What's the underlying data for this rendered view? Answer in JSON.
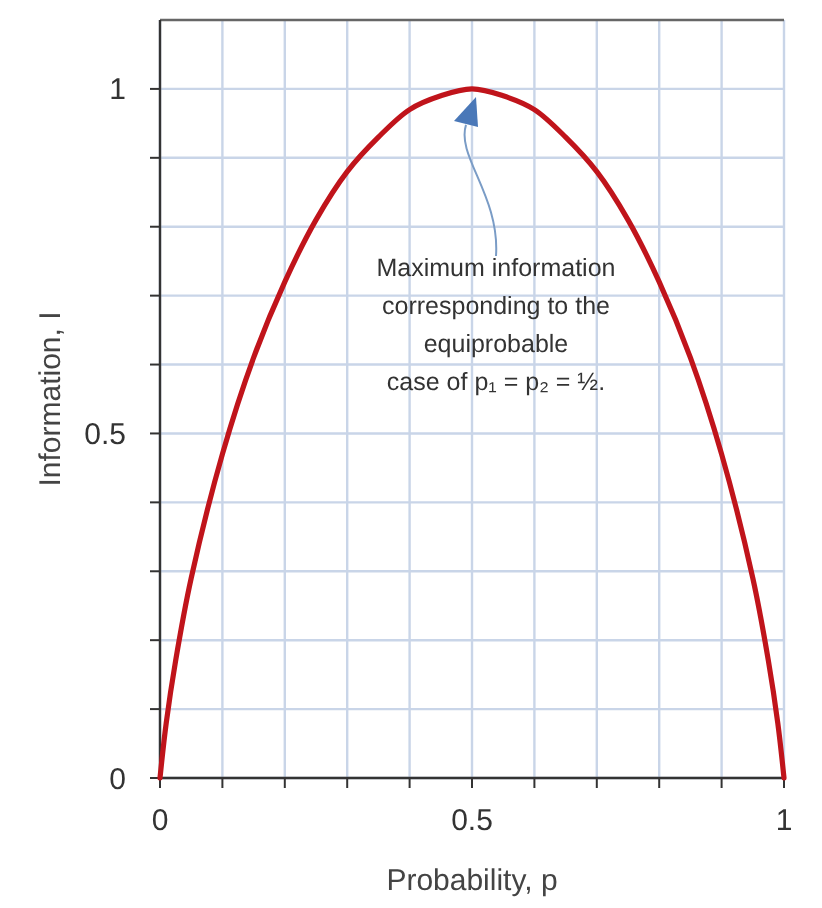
{
  "chart_data": {
    "type": "line",
    "xlabel": "Probability, p",
    "ylabel": "Information, I",
    "x": [
      0,
      0.01,
      0.025,
      0.05,
      0.1,
      0.15,
      0.2,
      0.25,
      0.3,
      0.35,
      0.4,
      0.45,
      0.5,
      0.55,
      0.6,
      0.65,
      0.7,
      0.75,
      0.8,
      0.85,
      0.9,
      0.95,
      0.975,
      0.99,
      1
    ],
    "series": [
      {
        "color": "#c0141b",
        "values": [
          0,
          0.08,
          0.17,
          0.29,
          0.47,
          0.61,
          0.72,
          0.81,
          0.88,
          0.93,
          0.97,
          0.99,
          1,
          0.99,
          0.97,
          0.93,
          0.88,
          0.81,
          0.72,
          0.61,
          0.47,
          0.29,
          0.17,
          0.08,
          0
        ]
      }
    ],
    "xlim": [
      0,
      1
    ],
    "ylim": [
      0,
      1.1
    ],
    "xticks": [
      0,
      {
        "value": 0.1,
        "label": null
      },
      {
        "value": 0.2,
        "label": null
      },
      {
        "value": 0.3,
        "label": null
      },
      {
        "value": 0.4,
        "label": null
      },
      0.5,
      {
        "value": 0.6,
        "label": null
      },
      {
        "value": 0.7,
        "label": null
      },
      {
        "value": 0.8,
        "label": null
      },
      {
        "value": 0.9,
        "label": null
      },
      1
    ],
    "yticks": [
      0,
      {
        "value": 0.1,
        "label": null
      },
      {
        "value": 0.2,
        "label": null
      },
      {
        "value": 0.3,
        "label": null
      },
      {
        "value": 0.4,
        "label": null
      },
      0.5,
      {
        "value": 0.6,
        "label": null
      },
      {
        "value": 0.7,
        "label": null
      },
      {
        "value": 0.8,
        "label": null
      },
      {
        "value": 0.9,
        "label": null
      },
      1
    ],
    "grid": true,
    "marker": "none",
    "line_style": "solid",
    "annotations": [
      "Maximum information\ncorresponding to the\nequiprobable\ncase of p₁ = p₂ = ½."
    ]
  }
}
